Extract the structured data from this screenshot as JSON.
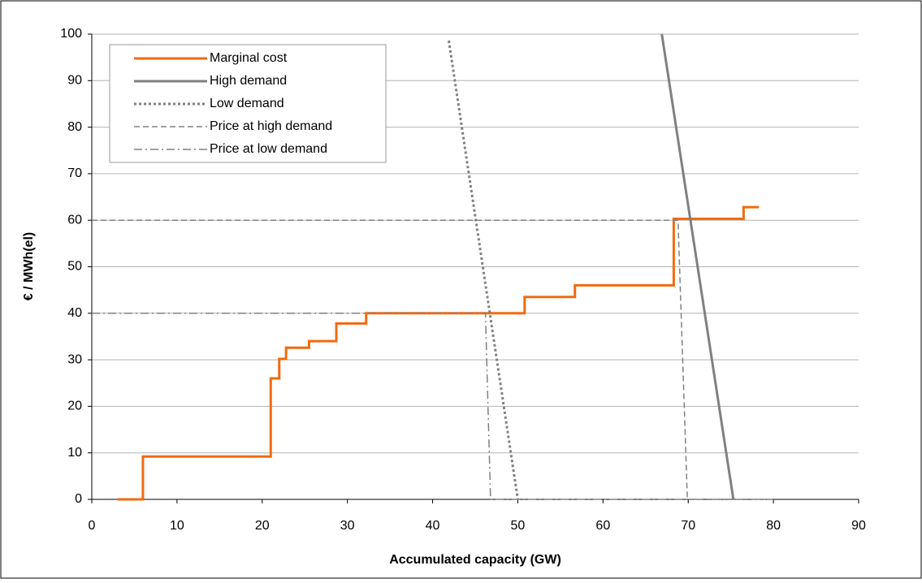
{
  "chart_data": {
    "type": "line",
    "xlabel": "Accumulated capacity (GW)",
    "ylabel": "€ / MWh(el)",
    "xlim": [
      0,
      90
    ],
    "xticks": [
      0,
      10,
      20,
      30,
      40,
      50,
      60,
      70,
      80,
      90
    ],
    "ylim": [
      0,
      100
    ],
    "yticks": [
      0,
      10,
      20,
      30,
      40,
      50,
      60,
      70,
      80,
      90,
      100
    ],
    "grid": true,
    "legend": "upper left",
    "series": [
      {
        "name": "Marginal cost",
        "color": "#f26b0f",
        "dash": "solid",
        "width": 3,
        "x": [
          3,
          6,
          6,
          21,
          21,
          22,
          22,
          22.8,
          22.8,
          25.5,
          25.5,
          28.7,
          28.7,
          32.2,
          32.2,
          50.8,
          50.8,
          56.7,
          56.7,
          68.3,
          68.3,
          76.5,
          76.5,
          78.3
        ],
        "values": [
          0,
          0,
          9.2,
          9.2,
          26,
          26,
          30.2,
          30.2,
          32.6,
          32.6,
          34,
          34,
          37.8,
          37.8,
          40,
          40,
          43.5,
          43.5,
          46,
          46,
          60.3,
          60.3,
          62.8,
          62.8
        ]
      },
      {
        "name": "High demand",
        "color": "#808080",
        "dash": "solid",
        "width": 3,
        "x": [
          66.9,
          75.3
        ],
        "values": [
          100,
          0
        ]
      },
      {
        "name": "Low demand",
        "color": "#808080",
        "dash": "dotted",
        "width": 3,
        "x": [
          41.9,
          50
        ],
        "values": [
          98.6,
          0
        ]
      },
      {
        "name": "Price at high demand",
        "color": "#808080",
        "dash": "dashed",
        "width": 1.5,
        "x": [
          0,
          68.8,
          69.9,
          80
        ],
        "values": [
          60,
          60,
          0,
          0
        ]
      },
      {
        "name": "Price at low demand",
        "color": "#808080",
        "dash": "dashdot",
        "width": 1.5,
        "x": [
          0,
          46.2,
          46.8,
          80
        ],
        "values": [
          40,
          40,
          0,
          0
        ]
      }
    ]
  }
}
